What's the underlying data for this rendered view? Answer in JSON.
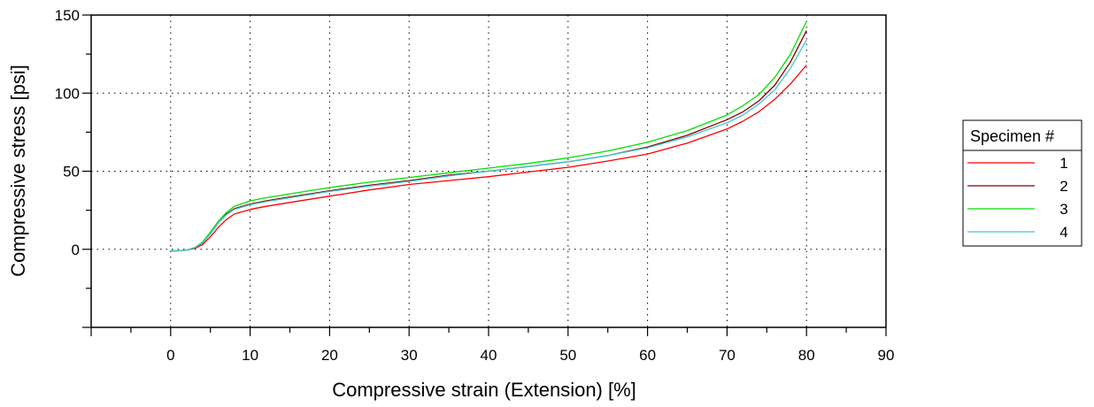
{
  "chart_data": {
    "type": "line",
    "xlabel": "Compressive strain (Extension) [%]",
    "ylabel": "Compressive stress [psi]",
    "xlim": [
      -10,
      90
    ],
    "ylim": [
      -50,
      150
    ],
    "x_ticks": [
      0,
      10,
      20,
      30,
      40,
      50,
      60,
      70,
      80,
      90
    ],
    "x_tick_labels": [
      "0",
      "10",
      "20",
      "30",
      "40",
      "50",
      "60",
      "70",
      "80",
      "90"
    ],
    "y_ticks": [
      0,
      50,
      100,
      150
    ],
    "y_tick_labels": [
      "0",
      "50",
      "100",
      "150"
    ],
    "grid": true,
    "legend": {
      "title": "Specimen #",
      "position": "right"
    },
    "x": [
      0,
      1,
      2,
      3,
      4,
      5,
      6,
      7,
      8,
      10,
      12,
      15,
      20,
      25,
      30,
      35,
      40,
      45,
      50,
      55,
      60,
      65,
      70,
      72,
      74,
      76,
      78,
      80
    ],
    "series": [
      {
        "name": "1",
        "color": "#ff0000",
        "values": [
          -1,
          -1,
          -0.5,
          0.5,
          3,
          8,
          14,
          19,
          22.5,
          25.5,
          27.5,
          30,
          34,
          38,
          41.5,
          44,
          46.5,
          49.5,
          52.5,
          56.5,
          61,
          68,
          77,
          82,
          88,
          96,
          106,
          118
        ]
      },
      {
        "name": "2",
        "color": "#800000",
        "values": [
          -1,
          -1,
          -0.5,
          1,
          4,
          10,
          17,
          22.5,
          26,
          29,
          31,
          33.5,
          37.5,
          41,
          44,
          47.5,
          50,
          53,
          56,
          60,
          65.5,
          73,
          83,
          88,
          95,
          105,
          120,
          140
        ]
      },
      {
        "name": "3",
        "color": "#00e000",
        "values": [
          -1,
          -1,
          -0.5,
          1,
          4.5,
          11,
          18,
          23.5,
          27.5,
          31,
          33,
          35.5,
          39.5,
          43,
          46,
          49,
          52,
          55,
          58.5,
          63,
          68.5,
          76,
          86,
          92,
          99,
          110,
          125,
          146
        ]
      },
      {
        "name": "4",
        "color": "#40c8d0",
        "values": [
          -1,
          -1,
          -0.5,
          1,
          4,
          10,
          17,
          22,
          25.5,
          28.5,
          30.5,
          33,
          37,
          40.5,
          43.5,
          47,
          50,
          53,
          56,
          60,
          65,
          72,
          81,
          86,
          93,
          102,
          116,
          134
        ]
      }
    ]
  }
}
